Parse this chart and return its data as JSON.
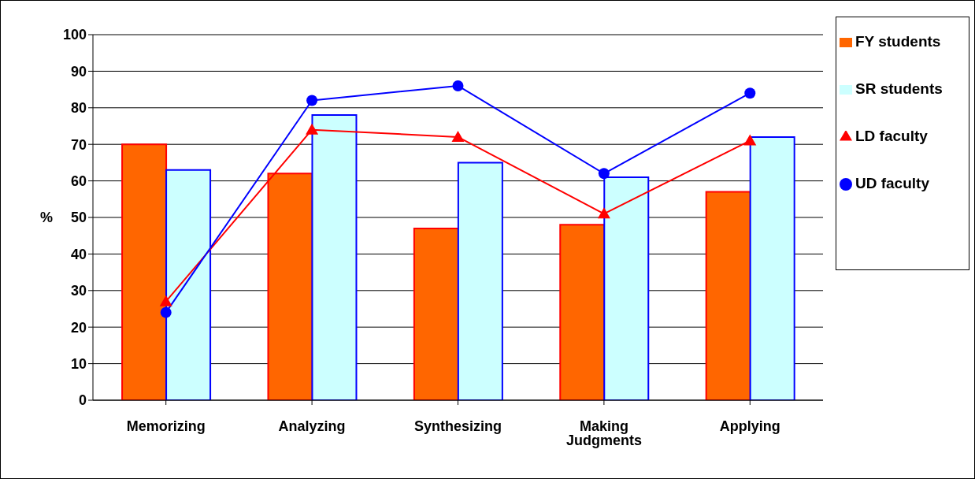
{
  "chart_data": {
    "type": "bar",
    "ylabel": "%",
    "categories": [
      "Memorizing",
      "Analyzing",
      "Synthesizing",
      "Making Judgments",
      "Applying"
    ],
    "ylim": [
      0,
      100
    ],
    "yticks": [
      0,
      10,
      20,
      30,
      40,
      50,
      60,
      70,
      80,
      90,
      100
    ],
    "grid": "y",
    "legend": "right",
    "series": [
      {
        "name": "FY students",
        "color": "#ff6600",
        "values": [
          70,
          62,
          47,
          48,
          57
        ]
      },
      {
        "name": "SR students",
        "color": "#ccffff",
        "values": [
          63,
          78,
          65,
          61,
          72
        ]
      },
      {
        "name": "LD faculty",
        "type": "line",
        "color": "#ff0000",
        "marker": "triangle",
        "values": [
          27,
          74,
          72,
          51,
          71
        ]
      },
      {
        "name": "UD faculty",
        "type": "line",
        "color": "#0000ff",
        "marker": "circle",
        "values": [
          24,
          82,
          86,
          62,
          84
        ]
      }
    ]
  }
}
